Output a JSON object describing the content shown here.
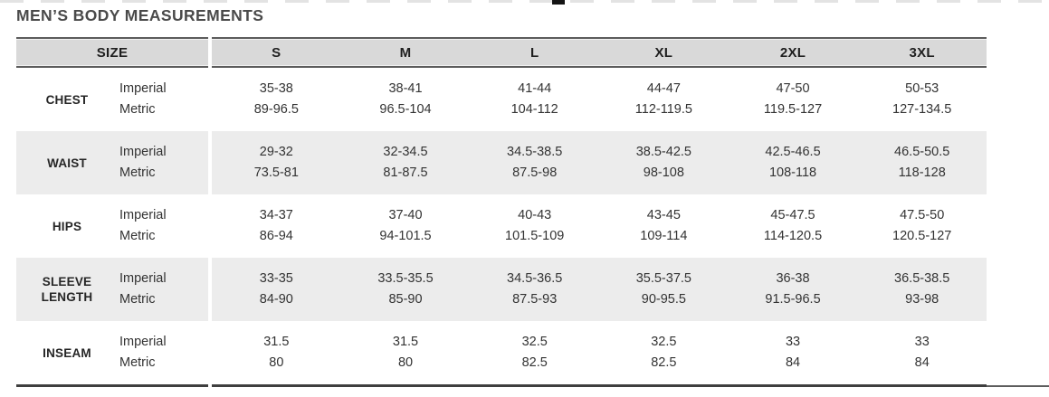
{
  "title": "MEN’S BODY MEASUREMENTS",
  "table": {
    "size_header": "SIZE",
    "size_columns": [
      "S",
      "M",
      "L",
      "XL",
      "2XL",
      "3XL"
    ],
    "unit_rows": [
      "Imperial",
      "Metric"
    ],
    "rows": [
      {
        "label": "CHEST",
        "imperial": [
          "35-38",
          "38-41",
          "41-44",
          "44-47",
          "47-50",
          "50-53"
        ],
        "metric": [
          "89-96.5",
          "96.5-104",
          "104-112",
          "112-119.5",
          "119.5-127",
          "127-134.5"
        ]
      },
      {
        "label": "WAIST",
        "imperial": [
          "29-32",
          "32-34.5",
          "34.5-38.5",
          "38.5-42.5",
          "42.5-46.5",
          "46.5-50.5"
        ],
        "metric": [
          "73.5-81",
          "81-87.5",
          "87.5-98",
          "98-108",
          "108-118",
          "118-128"
        ]
      },
      {
        "label": "HIPS",
        "imperial": [
          "34-37",
          "37-40",
          "40-43",
          "43-45",
          "45-47.5",
          "47.5-50"
        ],
        "metric": [
          "86-94",
          "94-101.5",
          "101.5-109",
          "109-114",
          "114-120.5",
          "120.5-127"
        ]
      },
      {
        "label": "SLEEVE LENGTH",
        "imperial": [
          "33-35",
          "33.5-35.5",
          "34.5-36.5",
          "35.5-37.5",
          "36-38",
          "36.5-38.5"
        ],
        "metric": [
          "84-90",
          "85-90",
          "87.5-93",
          "90-95.5",
          "91.5-96.5",
          "93-98"
        ]
      },
      {
        "label": "INSEAM",
        "imperial": [
          "31.5",
          "31.5",
          "32.5",
          "32.5",
          "33",
          "33"
        ],
        "metric": [
          "80",
          "80",
          "82.5",
          "82.5",
          "84",
          "84"
        ]
      }
    ]
  },
  "colors": {
    "header_bg": "#d9d9d9",
    "alt_row_bg": "#ececec",
    "header_border": "#5c5c5c",
    "bottom_rule": "#3f3f3f",
    "title_text": "#4a4a4a",
    "body_text": "#333333",
    "label_text": "#262626"
  }
}
